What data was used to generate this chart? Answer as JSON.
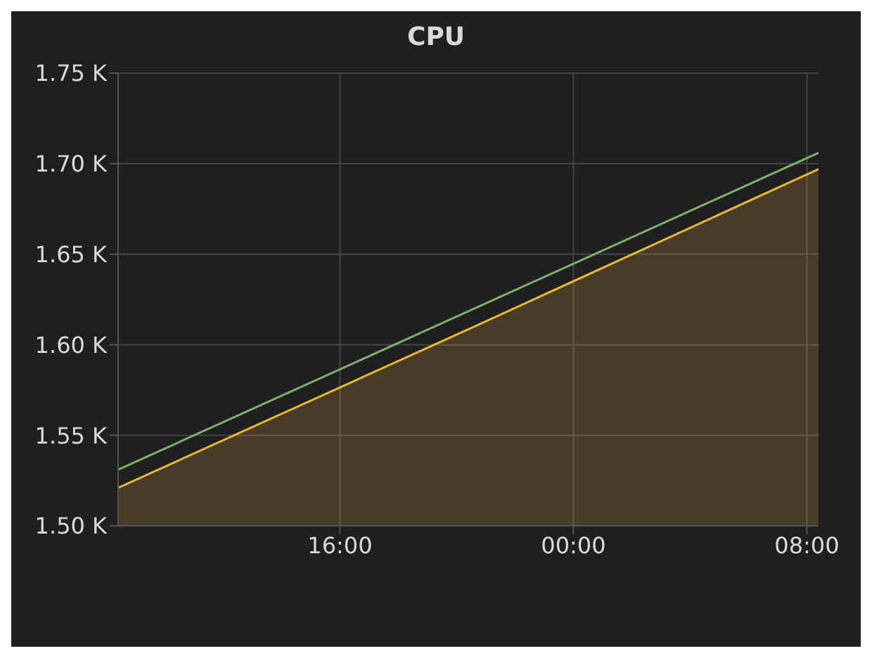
{
  "chart_data": {
    "type": "line",
    "title": "CPU",
    "xlim": [
      "2000-01-01T08:24",
      "2000-01-02T08:24"
    ],
    "xticks": [
      {
        "value": "2000-01-01T16:00",
        "label": "16:00"
      },
      {
        "value": "2000-01-02T00:00",
        "label": "00:00"
      },
      {
        "value": "2000-01-02T08:00",
        "label": "08:00"
      }
    ],
    "ylim": [
      1500,
      1750
    ],
    "yticks": [
      {
        "value": 1500,
        "label": "1.50 K"
      },
      {
        "value": 1550,
        "label": "1.55 K"
      },
      {
        "value": 1600,
        "label": "1.60 K"
      },
      {
        "value": 1650,
        "label": "1.65 K"
      },
      {
        "value": 1700,
        "label": "1.70 K"
      },
      {
        "value": 1750,
        "label": "1.75 K"
      }
    ],
    "grid": true,
    "marker": "none",
    "series": [
      {
        "type": "area",
        "color": "#eab839",
        "x": [
          "2000-01-01T08:24",
          "2000-01-01T20:36",
          "2000-01-02T08:24"
        ],
        "values": [
          1521,
          1610,
          1697
        ]
      },
      {
        "color": "#7eb26d",
        "x": [
          "2000-01-01T08:24",
          "2000-01-02T08:24"
        ],
        "values": [
          1531,
          1706
        ]
      }
    ]
  }
}
